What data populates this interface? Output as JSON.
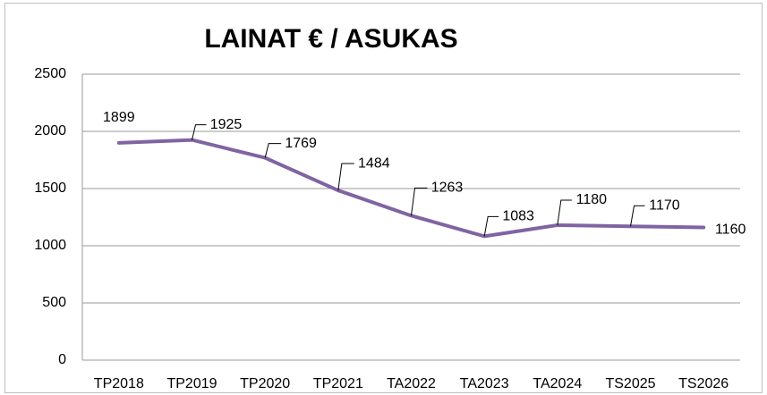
{
  "chart_data": {
    "type": "line",
    "title": "LAINAT € / ASUKAS",
    "categories": [
      "TP2018",
      "TP2019",
      "TP2020",
      "TP2021",
      "TA2022",
      "TA2023",
      "TA2024",
      "TS2025",
      "TS2026"
    ],
    "series": [
      {
        "name": "LAINAT € / ASUKAS",
        "color": "#8064a2",
        "values": [
          1899,
          1925,
          1769,
          1484,
          1263,
          1083,
          1180,
          1170,
          1160
        ]
      }
    ],
    "ylim": [
      0,
      2500
    ],
    "yticks": [
      0,
      500,
      1000,
      1500,
      2000,
      2500
    ],
    "grid": true,
    "legend": false
  }
}
